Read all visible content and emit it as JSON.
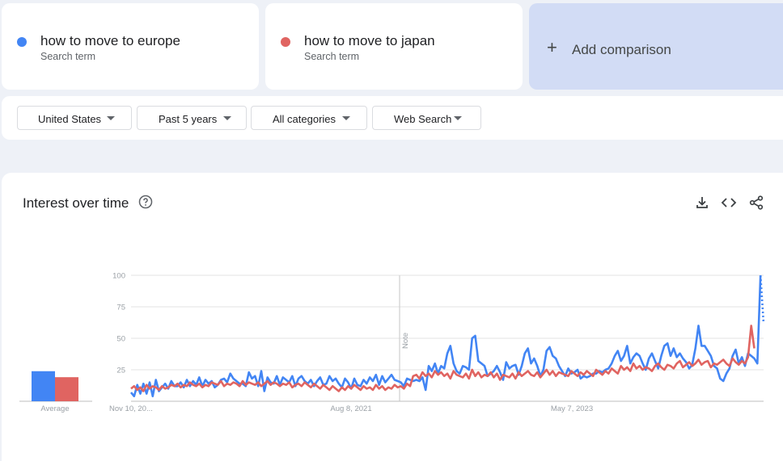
{
  "terms": [
    {
      "name": "how to move to europe",
      "subtitle": "Search term",
      "color": "#4285f4"
    },
    {
      "name": "how to move to japan",
      "subtitle": "Search term",
      "color": "#e06461"
    }
  ],
  "add_comparison": {
    "icon": "+",
    "label": "Add comparison"
  },
  "filters": {
    "region": "United States",
    "period": "Past 5 years",
    "category": "All categories",
    "search_type": "Web Search"
  },
  "panel": {
    "title": "Interest over time",
    "help_icon": "help-circle-icon",
    "tool_icons": [
      "download-icon",
      "embed-code-icon",
      "share-icon"
    ]
  },
  "chart_data": {
    "type": "line",
    "title": "",
    "xlabel": "",
    "ylabel": "",
    "ylim": [
      0,
      100
    ],
    "y_ticks": [
      25,
      50,
      75,
      100
    ],
    "x_tick_labels": [
      "Nov 10, 20...",
      "Aug 8, 2021",
      "May 7, 2023"
    ],
    "note_label": "Note",
    "grid": true,
    "series": [
      {
        "name": "how to move to europe",
        "color": "#4285f4",
        "values": [
          7,
          4,
          13,
          6,
          14,
          6,
          15,
          4,
          17,
          8,
          11,
          14,
          10,
          16,
          12,
          12,
          15,
          11,
          17,
          12,
          16,
          13,
          19,
          12,
          17,
          14,
          16,
          11,
          13,
          17,
          18,
          15,
          22,
          18,
          16,
          14,
          14,
          12,
          23,
          18,
          20,
          12,
          24,
          8,
          19,
          15,
          14,
          20,
          13,
          19,
          17,
          15,
          20,
          12,
          18,
          20,
          16,
          14,
          17,
          12,
          16,
          19,
          13,
          14,
          20,
          16,
          18,
          14,
          11,
          18,
          15,
          10,
          18,
          13,
          12,
          17,
          14,
          19,
          16,
          21,
          13,
          20,
          15,
          18,
          21,
          17,
          16,
          15,
          12,
          18,
          17,
          16,
          17,
          16,
          19,
          9,
          28,
          24,
          30,
          22,
          28,
          26,
          38,
          44,
          30,
          24,
          22,
          28,
          27,
          25,
          50,
          52,
          32,
          30,
          28,
          20,
          22,
          24,
          28,
          23,
          17,
          31,
          26,
          28,
          29,
          21,
          28,
          38,
          42,
          30,
          34,
          28,
          20,
          25,
          40,
          43,
          36,
          34,
          28,
          24,
          20,
          26,
          22,
          23,
          25,
          18,
          20,
          19,
          20,
          22,
          22,
          24,
          23,
          25,
          26,
          30,
          36,
          40,
          32,
          36,
          44,
          30,
          35,
          38,
          36,
          30,
          25,
          34,
          38,
          32,
          26,
          36,
          44,
          46,
          36,
          42,
          35,
          38,
          34,
          31,
          26,
          29,
          42,
          60,
          44,
          44,
          40,
          36,
          28,
          26,
          18,
          16,
          22,
          26,
          36,
          41,
          30,
          35,
          28,
          38,
          36,
          34,
          30,
          100,
          62
        ]
      },
      {
        "name": "how to move to japan",
        "color": "#e06461",
        "values": [
          10,
          12,
          9,
          11,
          8,
          13,
          10,
          12,
          11,
          9,
          12,
          10,
          11,
          13,
          12,
          14,
          11,
          13,
          12,
          15,
          13,
          12,
          14,
          11,
          13,
          12,
          15,
          14,
          13,
          16,
          12,
          14,
          13,
          15,
          14,
          12,
          16,
          13,
          15,
          14,
          13,
          15,
          12,
          14,
          16,
          13,
          15,
          14,
          12,
          14,
          13,
          15,
          11,
          13,
          14,
          12,
          15,
          13,
          11,
          14,
          12,
          10,
          13,
          11,
          9,
          12,
          10,
          8,
          11,
          9,
          12,
          10,
          13,
          11,
          9,
          12,
          10,
          11,
          9,
          13,
          10,
          12,
          9,
          11,
          10,
          13,
          11,
          12,
          10,
          14,
          12,
          20,
          21,
          18,
          23,
          20,
          22,
          19,
          24,
          21,
          23,
          20,
          22,
          18,
          24,
          21,
          20,
          19,
          22,
          18,
          25,
          20,
          23,
          19,
          21,
          20,
          23,
          19,
          22,
          17,
          21,
          20,
          19,
          22,
          18,
          23,
          20,
          22,
          24,
          21,
          20,
          23,
          19,
          22,
          25,
          21,
          24,
          20,
          23,
          22,
          21,
          20,
          24,
          22,
          20,
          23,
          21,
          24,
          22,
          20,
          25,
          23,
          21,
          24,
          22,
          26,
          24,
          22,
          28,
          25,
          27,
          24,
          30,
          26,
          28,
          25,
          27,
          26,
          24,
          28,
          30,
          27,
          25,
          29,
          28,
          26,
          30,
          32,
          27,
          29,
          31,
          28,
          30,
          33,
          29,
          31,
          32,
          27,
          30,
          29,
          31,
          33,
          30,
          28,
          34,
          31,
          29,
          32,
          30,
          35,
          60,
          42
        ]
      }
    ]
  }
}
